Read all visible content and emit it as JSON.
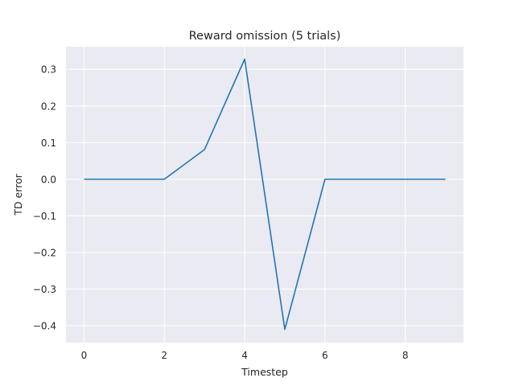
{
  "chart_data": {
    "type": "line",
    "title": "Reward omission (5 trials)",
    "xlabel": "Timestep",
    "ylabel": "TD error",
    "xlim": [
      -0.45,
      9.45
    ],
    "ylim": [
      -0.446,
      0.362
    ],
    "xticks": [
      0,
      2,
      4,
      6,
      8
    ],
    "xtick_labels": [
      "0",
      "2",
      "4",
      "6",
      "8"
    ],
    "yticks": [
      0.3,
      0.2,
      0.1,
      0.0,
      -0.1,
      -0.2,
      -0.3,
      -0.4
    ],
    "ytick_labels": [
      "0.3",
      "0.2",
      "0.1",
      "0.0",
      "−0.1",
      "−0.2",
      "−0.3",
      "−0.4"
    ],
    "grid": true,
    "colors": {
      "background": "#eaeaf2",
      "grid": "#ffffff",
      "line": "#1f77b4",
      "text": "#262626"
    },
    "series": [
      {
        "x": [
          0,
          1,
          2,
          3,
          4,
          5,
          6,
          7,
          8,
          9
        ],
        "values": [
          0.0,
          0.0,
          0.0,
          0.081,
          0.328,
          -0.41,
          0.0,
          0.0,
          0.0,
          0.0
        ]
      }
    ]
  }
}
